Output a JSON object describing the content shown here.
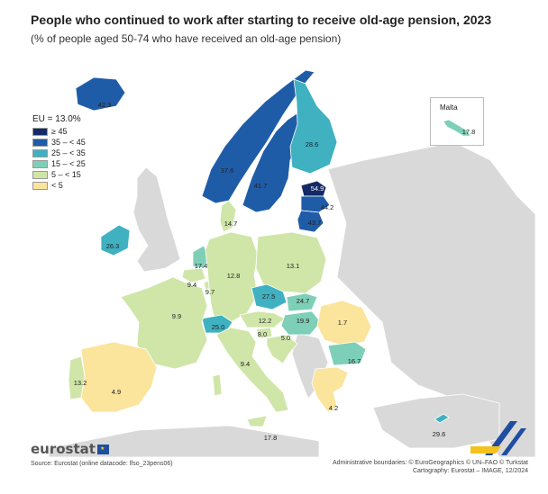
{
  "title": "People who continued to work after starting to receive old-age pension, 2023",
  "subtitle": "(% of people aged 50-74 who have received an old-age pension)",
  "legend": {
    "eu_label": "EU = 13.0%",
    "classes": [
      {
        "label": "≥ 45",
        "color": "#142a66"
      },
      {
        "label": "35 – < 45",
        "color": "#1f5ca8"
      },
      {
        "label": "25 – < 35",
        "color": "#3fb1c1"
      },
      {
        "label": "15 – < 25",
        "color": "#7ecfb8"
      },
      {
        "label": "5 – < 15",
        "color": "#cfe6a8"
      },
      {
        "label": "< 5",
        "color": "#fbe49b"
      }
    ]
  },
  "inset": {
    "name": "Malta",
    "value": "17.8"
  },
  "countries": {
    "iceland": "42.3",
    "norway": "37.6",
    "sweden": "41.7",
    "finland": "28.6",
    "estonia": "54.9",
    "latvia": "44.2",
    "lithuania": "43.7",
    "denmark": "14.7",
    "ireland": "26.3",
    "netherlands": "17.4",
    "belgium": "9.4",
    "luxembourg": "9.7",
    "germany": "12.8",
    "poland": "13.1",
    "czechia": "27.5",
    "slovakia": "24.7",
    "austria": "12.2",
    "hungary": "19.9",
    "switzerland": "25.0",
    "slovenia": "8.0",
    "croatia": "5.0",
    "france": "9.9",
    "italy": "9.4",
    "romania": "1.7",
    "bulgaria": "16.7",
    "greece": "4.2",
    "cyprus": "29.6",
    "portugal": "13.2",
    "spain": "4.9",
    "malta_main": "17.8"
  },
  "colors": {
    "non_eu_land": "#d9d9d9",
    "sea": "#ffffff",
    "border": "#ffffff"
  },
  "branding": {
    "logo": "eurostat"
  },
  "source": "Source: Eurostat (online datacode: lfso_23pens06)",
  "credits": {
    "line1": "Administrative boundaries: © EuroGeographics © UN–FAO © Turkstat",
    "line2": "Cartography: Eurostat – IMAGE, 12/2024"
  }
}
